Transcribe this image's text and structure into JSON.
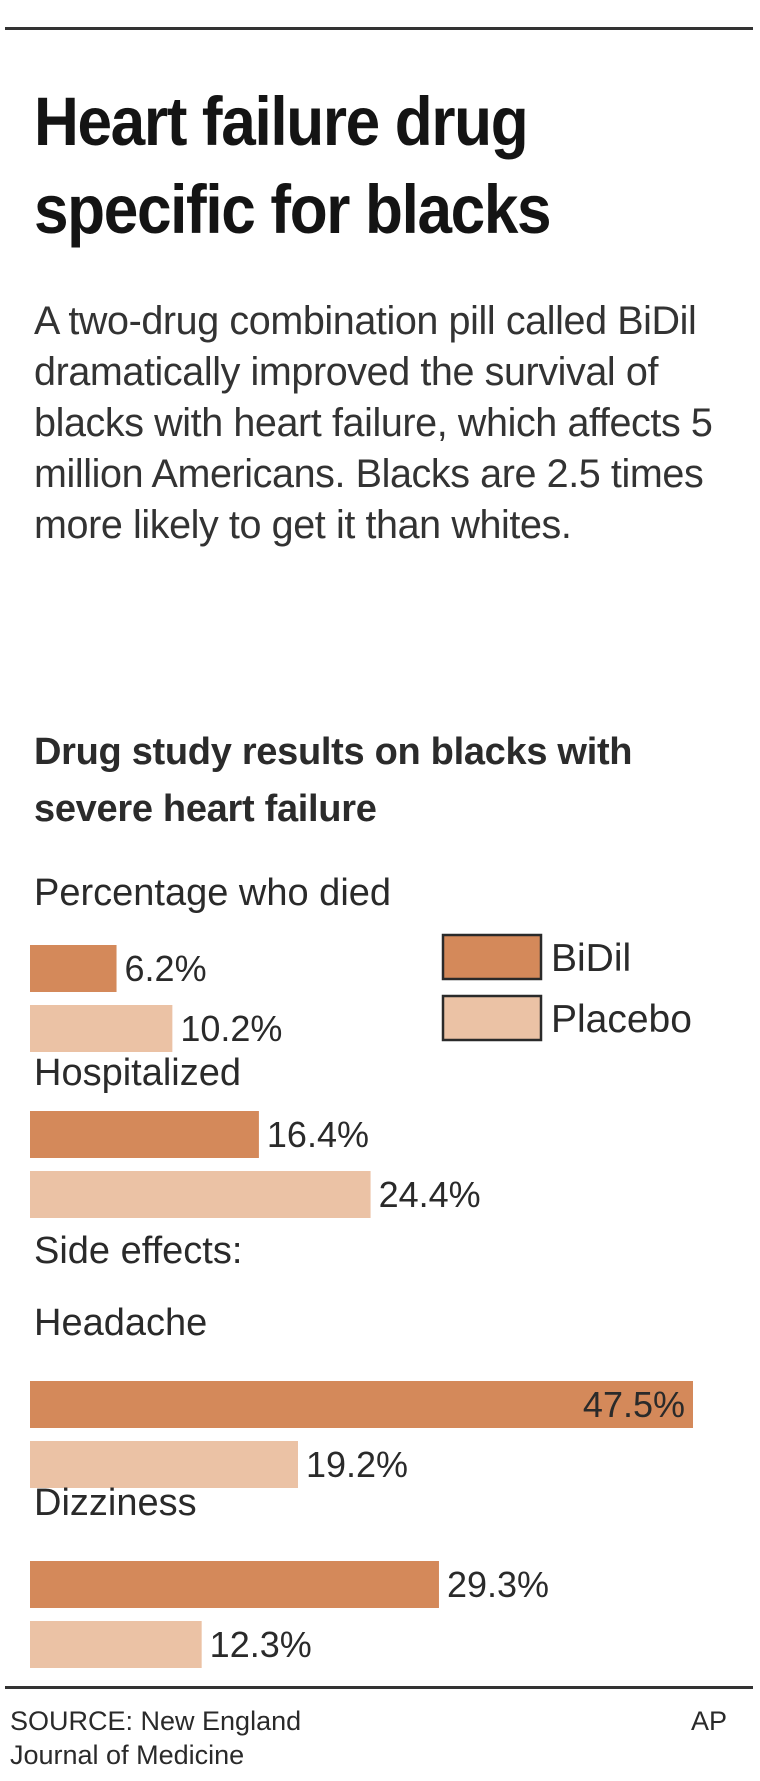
{
  "headline": "Heart failure drug specific for blacks",
  "intro": "A two-drug combination pill called BiDil dramatically improved the survival of blacks with heart failure, which affects 5 million Americans. Blacks are 2.5 times more likely to get it than whites.",
  "subhead": "Drug study results on blacks with severe heart failure",
  "source": {
    "line1": "SOURCE: New England",
    "line2": "Journal of Medicine"
  },
  "credit": "AP",
  "colors": {
    "bidil": "#d4895a",
    "placebo": "#ebc2a5",
    "rule": "#333333"
  },
  "chart_data": {
    "type": "bar",
    "orientation": "horizontal",
    "unit": "%",
    "series": [
      {
        "name": "BiDil",
        "color": "#d4895a"
      },
      {
        "name": "Placebo",
        "color": "#ebc2a5"
      }
    ],
    "groups": [
      {
        "label": "Percentage who died",
        "section": "",
        "values": [
          6.2,
          10.2
        ],
        "value_labels": [
          "6.2%",
          "10.2%"
        ]
      },
      {
        "label": "Hospitalized",
        "section": "",
        "values": [
          16.4,
          24.4
        ],
        "value_labels": [
          "16.4%",
          "24.4%"
        ]
      },
      {
        "label": "Headache",
        "section": "Side effects:",
        "values": [
          47.5,
          19.2
        ],
        "value_labels": [
          "47.5%",
          "19.2%"
        ]
      },
      {
        "label": "Dizziness",
        "section": "",
        "values": [
          29.3,
          12.3
        ],
        "value_labels": [
          "29.3%",
          "12.3%"
        ]
      }
    ],
    "xlim": [
      0,
      47.5
    ],
    "legend": "right of first group",
    "grid": false
  }
}
